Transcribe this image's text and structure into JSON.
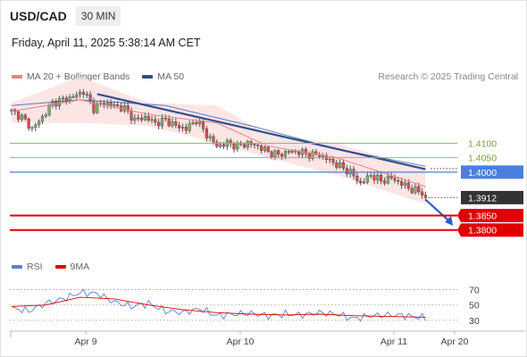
{
  "header": {
    "symbol": "USD/CAD",
    "timeframe": "30 MIN"
  },
  "timestamp": "Friday, April 11, 2025 5:38:14 AM CET",
  "credit": "Research © 2025 Trading Central",
  "legend": [
    {
      "label": "MA 20 + Bollinger Bands",
      "color": "#f08080"
    },
    {
      "label": "MA 50",
      "color": "#2f4f8f"
    }
  ],
  "rsi_legend": [
    {
      "label": "RSI",
      "color": "#5b7fd6"
    },
    {
      "label": "9MA",
      "color": "#e00000"
    }
  ],
  "colors": {
    "bull": "#7fb069",
    "bear": "#d94f4f",
    "wick": "#555555",
    "resistance": "#8bbf5a",
    "pivot": "#4a7fe0",
    "support": "#e00000",
    "current": "#333333"
  },
  "chart_data": [
    {
      "type": "candlestick",
      "x_ticks": [
        "Apr 9",
        "Apr 10",
        "Apr 11",
        "Apr 20"
      ],
      "ylim": [
        1.3725,
        1.4302
      ],
      "levels": [
        {
          "label": "1.4100",
          "value": 1.41,
          "kind": "resistance"
        },
        {
          "label": "1.4050",
          "value": 1.405,
          "kind": "resistance"
        },
        {
          "label": "1.4000",
          "value": 1.4,
          "kind": "pivot"
        },
        {
          "label": "1.3912",
          "value": 1.3912,
          "kind": "current"
        },
        {
          "label": "1.3850",
          "value": 1.385,
          "kind": "support"
        },
        {
          "label": "1.3800",
          "value": 1.38,
          "kind": "support"
        }
      ],
      "close_anchors": [
        [
          0,
          1.421
        ],
        [
          3,
          1.419
        ],
        [
          6,
          1.415
        ],
        [
          9,
          1.419
        ],
        [
          12,
          1.424
        ],
        [
          15,
          1.425
        ],
        [
          18,
          1.426
        ],
        [
          21,
          1.428
        ],
        [
          24,
          1.422
        ],
        [
          27,
          1.424
        ],
        [
          30,
          1.423
        ],
        [
          33,
          1.422
        ],
        [
          36,
          1.418
        ],
        [
          39,
          1.419
        ],
        [
          42,
          1.417
        ],
        [
          45,
          1.418
        ],
        [
          48,
          1.416
        ],
        [
          51,
          1.415
        ],
        [
          54,
          1.418
        ],
        [
          57,
          1.413
        ],
        [
          60,
          1.409
        ],
        [
          63,
          1.41
        ],
        [
          66,
          1.409
        ],
        [
          69,
          1.41
        ],
        [
          72,
          1.409
        ],
        [
          75,
          1.407
        ],
        [
          78,
          1.406
        ],
        [
          81,
          1.407
        ],
        [
          84,
          1.407
        ],
        [
          87,
          1.406
        ],
        [
          90,
          1.406
        ],
        [
          93,
          1.404
        ],
        [
          96,
          1.402
        ],
        [
          99,
          1.4
        ],
        [
          102,
          1.396
        ],
        [
          105,
          1.399
        ],
        [
          108,
          1.397
        ],
        [
          111,
          1.398
        ],
        [
          114,
          1.396
        ],
        [
          117,
          1.394
        ],
        [
          120,
          1.393
        ],
        [
          121,
          1.3912
        ]
      ],
      "ma20_upper": [
        [
          0,
          1.424
        ],
        [
          20,
          1.433
        ],
        [
          40,
          1.424
        ],
        [
          60,
          1.423
        ],
        [
          75,
          1.413
        ],
        [
          95,
          1.41
        ],
        [
          121,
          1.401
        ]
      ],
      "ma20": [
        [
          0,
          1.421
        ],
        [
          20,
          1.425
        ],
        [
          40,
          1.42
        ],
        [
          60,
          1.417
        ],
        [
          75,
          1.409
        ],
        [
          95,
          1.405
        ],
        [
          121,
          1.395
        ]
      ],
      "ma20_lower": [
        [
          0,
          1.417
        ],
        [
          20,
          1.417
        ],
        [
          40,
          1.416
        ],
        [
          60,
          1.41
        ],
        [
          75,
          1.405
        ],
        [
          95,
          1.399
        ],
        [
          121,
          1.389
        ]
      ],
      "ma50": [
        [
          0,
          1.423
        ],
        [
          20,
          1.425
        ],
        [
          45,
          1.423
        ],
        [
          70,
          1.416
        ],
        [
          95,
          1.408
        ],
        [
          121,
          1.402
        ]
      ],
      "trendline": [
        [
          25,
          1.427
        ],
        [
          121,
          1.401
        ]
      ],
      "forecast_arrow": [
        [
          121,
          1.3905
        ],
        [
          129,
          1.3815
        ]
      ]
    },
    {
      "type": "line",
      "name": "RSI",
      "ylim": [
        24,
        80
      ],
      "y_ticks": [
        70,
        50,
        30
      ],
      "rsi_anchors": [
        [
          0,
          46
        ],
        [
          5,
          42
        ],
        [
          10,
          52
        ],
        [
          15,
          58
        ],
        [
          20,
          66
        ],
        [
          25,
          65
        ],
        [
          30,
          54
        ],
        [
          35,
          48
        ],
        [
          40,
          52
        ],
        [
          45,
          42
        ],
        [
          50,
          40
        ],
        [
          55,
          45
        ],
        [
          60,
          36
        ],
        [
          65,
          38
        ],
        [
          70,
          39
        ],
        [
          75,
          36
        ],
        [
          80,
          38
        ],
        [
          85,
          37
        ],
        [
          90,
          40
        ],
        [
          95,
          38
        ],
        [
          100,
          32
        ],
        [
          105,
          36
        ],
        [
          110,
          37
        ],
        [
          115,
          36
        ],
        [
          121,
          33
        ]
      ],
      "ma9_anchors": [
        [
          0,
          48
        ],
        [
          10,
          50
        ],
        [
          20,
          60
        ],
        [
          30,
          58
        ],
        [
          40,
          50
        ],
        [
          50,
          44
        ],
        [
          60,
          40
        ],
        [
          70,
          38
        ],
        [
          80,
          37
        ],
        [
          90,
          38
        ],
        [
          100,
          36
        ],
        [
          110,
          35
        ],
        [
          121,
          34
        ]
      ]
    }
  ]
}
